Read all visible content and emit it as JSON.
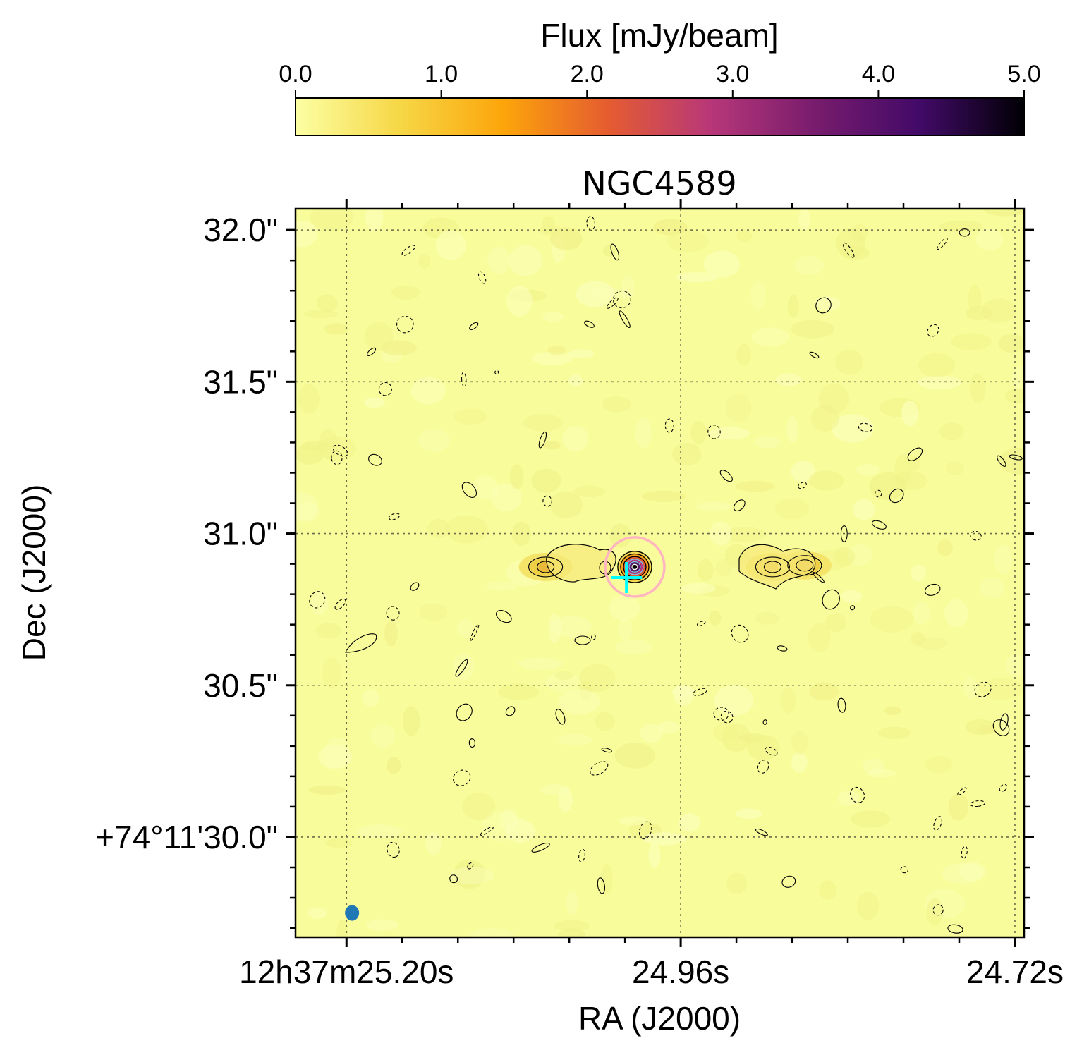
{
  "chart_data": {
    "type": "heatmap",
    "title": "NGC4589",
    "xlabel": "RA (J2000)",
    "ylabel": "Dec (J2000)",
    "grid": true,
    "colorbar": {
      "label": "Flux [mJy/beam]",
      "colormap": "inferno_r",
      "range": [
        0.0,
        5.0
      ],
      "ticks": [
        0.0,
        1.0,
        2.0,
        3.0,
        4.0,
        5.0
      ],
      "tick_labels": [
        "0.0",
        "1.0",
        "2.0",
        "3.0",
        "4.0",
        "5.0"
      ],
      "placement": "top",
      "colors": [
        "#fcffa4",
        "#f6d746",
        "#fca50a",
        "#e55c30",
        "#b73779",
        "#781c6d",
        "#420a68",
        "#000004"
      ]
    },
    "x_axis": {
      "unit": "seconds of RA (12h37m)",
      "range_s": [
        25.2366,
        24.7134
      ],
      "tick_values_s": [
        25.2,
        24.96,
        24.72
      ],
      "tick_labels": [
        "12h37m25.20s",
        "24.96s",
        "24.72s"
      ]
    },
    "y_axis": {
      "unit": "arcsec (+74°11')",
      "range_arcsec": [
        29.67,
        32.07
      ],
      "tick_values_arcsec": [
        30.0,
        30.5,
        31.0,
        31.5,
        32.0
      ],
      "tick_labels": [
        "+74°11'30.0\"",
        "30.5\"",
        "31.0\"",
        "31.5\"",
        "32.0\""
      ]
    },
    "core": {
      "ra_s": 24.993,
      "dec_arcsec": 30.89,
      "peak_mjy": 5.0
    },
    "lobes": [
      {
        "ra_s": 25.057,
        "dec_arcsec": 30.89,
        "peak_mjy": 0.7
      },
      {
        "ra_s": 24.894,
        "dec_arcsec": 30.89,
        "peak_mjy": 0.6
      },
      {
        "ra_s": 24.871,
        "dec_arcsec": 30.895,
        "peak_mjy": 0.5
      }
    ],
    "marker_cross": {
      "ra_s": 24.999,
      "dec_arcsec": 30.855,
      "color": "#00ffff"
    },
    "marker_circle": {
      "ra_s": 24.993,
      "dec_arcsec": 30.89,
      "color": "#ffb6c1"
    },
    "beam": {
      "ra_s": 25.196,
      "dec_arcsec": 29.75,
      "color": "#1f77b4"
    },
    "background_color": "#f8fc9a"
  }
}
